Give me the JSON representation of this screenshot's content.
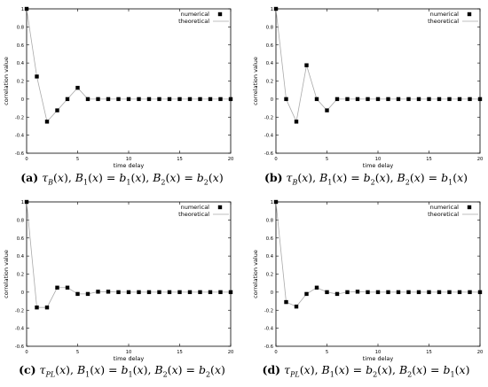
{
  "chart_data": [
    {
      "type": "scatter",
      "panel_label": "(a)",
      "caption": "τ_B(x), B_1(x) = b_1(x), B_2(x) = b_2(x)",
      "caption_parts": {
        "label": "(a)",
        "tau": "τ",
        "tau_sub": "B",
        "b1": "b",
        "b1_sub": "1",
        "b2": "b",
        "b2_sub": "2"
      },
      "xlabel": "time delay",
      "ylabel": "correlation value",
      "xlim": [
        0,
        20
      ],
      "ylim": [
        -0.6,
        1
      ],
      "xticks": [
        0,
        5,
        10,
        15,
        20
      ],
      "yticks": [
        -0.6,
        -0.4,
        -0.2,
        0,
        0.2,
        0.4,
        0.6,
        0.8,
        1
      ],
      "legend_position": "top-right",
      "series": [
        {
          "name": "numerical",
          "style": "markers"
        },
        {
          "name": "theoretical",
          "style": "line"
        }
      ],
      "x": [
        0,
        1,
        2,
        3,
        4,
        5,
        6,
        7,
        8,
        9,
        10,
        11,
        12,
        13,
        14,
        15,
        16,
        17,
        18,
        19,
        20
      ],
      "y": [
        1,
        0.25,
        -0.25,
        -0.125,
        0,
        0.125,
        0,
        0,
        0,
        0,
        0,
        0,
        0,
        0,
        0,
        0,
        0,
        0,
        0,
        0,
        0
      ]
    },
    {
      "type": "scatter",
      "panel_label": "(b)",
      "caption": "τ_B(x), B_1(x) = b_2(x), B_2(x) = b_1(x)",
      "caption_parts": {
        "label": "(b)",
        "tau": "τ",
        "tau_sub": "B",
        "b1": "b",
        "b1_sub": "2",
        "b2": "b",
        "b2_sub": "1"
      },
      "xlabel": "time delay",
      "ylabel": "correlation value",
      "xlim": [
        0,
        20
      ],
      "ylim": [
        -0.6,
        1
      ],
      "xticks": [
        0,
        5,
        10,
        15,
        20
      ],
      "yticks": [
        -0.6,
        -0.4,
        -0.2,
        0,
        0.2,
        0.4,
        0.6,
        0.8,
        1
      ],
      "legend_position": "top-right",
      "series": [
        {
          "name": "numerical",
          "style": "markers"
        },
        {
          "name": "theoretical",
          "style": "line"
        }
      ],
      "x": [
        0,
        1,
        2,
        3,
        4,
        5,
        6,
        7,
        8,
        9,
        10,
        11,
        12,
        13,
        14,
        15,
        16,
        17,
        18,
        19,
        20
      ],
      "y": [
        1,
        0,
        -0.25,
        0.375,
        0,
        -0.125,
        0,
        0,
        0,
        0,
        0,
        0,
        0,
        0,
        0,
        0,
        0,
        0,
        0,
        0,
        0
      ]
    },
    {
      "type": "scatter",
      "panel_label": "(c)",
      "caption": "τ_PL(x), B_1(x) = b_1(x), B_2(x) = b_2(x)",
      "caption_parts": {
        "label": "(c)",
        "tau": "τ",
        "tau_sub": "PL",
        "b1": "b",
        "b1_sub": "1",
        "b2": "b",
        "b2_sub": "2"
      },
      "xlabel": "time delay",
      "ylabel": "correlation value",
      "xlim": [
        0,
        20
      ],
      "ylim": [
        -0.6,
        1
      ],
      "xticks": [
        0,
        5,
        10,
        15,
        20
      ],
      "yticks": [
        -0.6,
        -0.4,
        -0.2,
        0,
        0.2,
        0.4,
        0.6,
        0.8,
        1
      ],
      "legend_position": "top-right",
      "series": [
        {
          "name": "numerical",
          "style": "markers"
        },
        {
          "name": "theoretical",
          "style": "line"
        }
      ],
      "x": [
        0,
        1,
        2,
        3,
        4,
        5,
        6,
        7,
        8,
        9,
        10,
        11,
        12,
        13,
        14,
        15,
        16,
        17,
        18,
        19,
        20
      ],
      "y": [
        1,
        -0.17,
        -0.17,
        0.05,
        0.05,
        -0.02,
        -0.02,
        0.005,
        0.005,
        0,
        0,
        0,
        0,
        0,
        0,
        0,
        0,
        0,
        0,
        0,
        0
      ]
    },
    {
      "type": "scatter",
      "panel_label": "(d)",
      "caption": "τ_PL(x), B_1(x) = b_2(x), B_2(x) = b_1(x)",
      "caption_parts": {
        "label": "(d)",
        "tau": "τ",
        "tau_sub": "PL",
        "b1": "b",
        "b1_sub": "2",
        "b2": "b",
        "b2_sub": "1"
      },
      "xlabel": "time delay",
      "ylabel": "correlation value",
      "xlim": [
        0,
        20
      ],
      "ylim": [
        -0.6,
        1
      ],
      "xticks": [
        0,
        5,
        10,
        15,
        20
      ],
      "yticks": [
        -0.6,
        -0.4,
        -0.2,
        0,
        0.2,
        0.4,
        0.6,
        0.8,
        1
      ],
      "legend_position": "top-right",
      "series": [
        {
          "name": "numerical",
          "style": "markers"
        },
        {
          "name": "theoretical",
          "style": "line"
        }
      ],
      "x": [
        0,
        1,
        2,
        3,
        4,
        5,
        6,
        7,
        8,
        9,
        10,
        11,
        12,
        13,
        14,
        15,
        16,
        17,
        18,
        19,
        20
      ],
      "y": [
        1,
        -0.11,
        -0.16,
        -0.02,
        0.05,
        0,
        -0.02,
        0,
        0.005,
        0,
        0,
        0,
        0,
        0,
        0,
        0,
        0,
        0,
        0,
        0,
        0
      ]
    }
  ],
  "colors": {
    "marker": "#000000",
    "line": "#aaaaaa",
    "axis": "#000000",
    "text": "#000000"
  }
}
